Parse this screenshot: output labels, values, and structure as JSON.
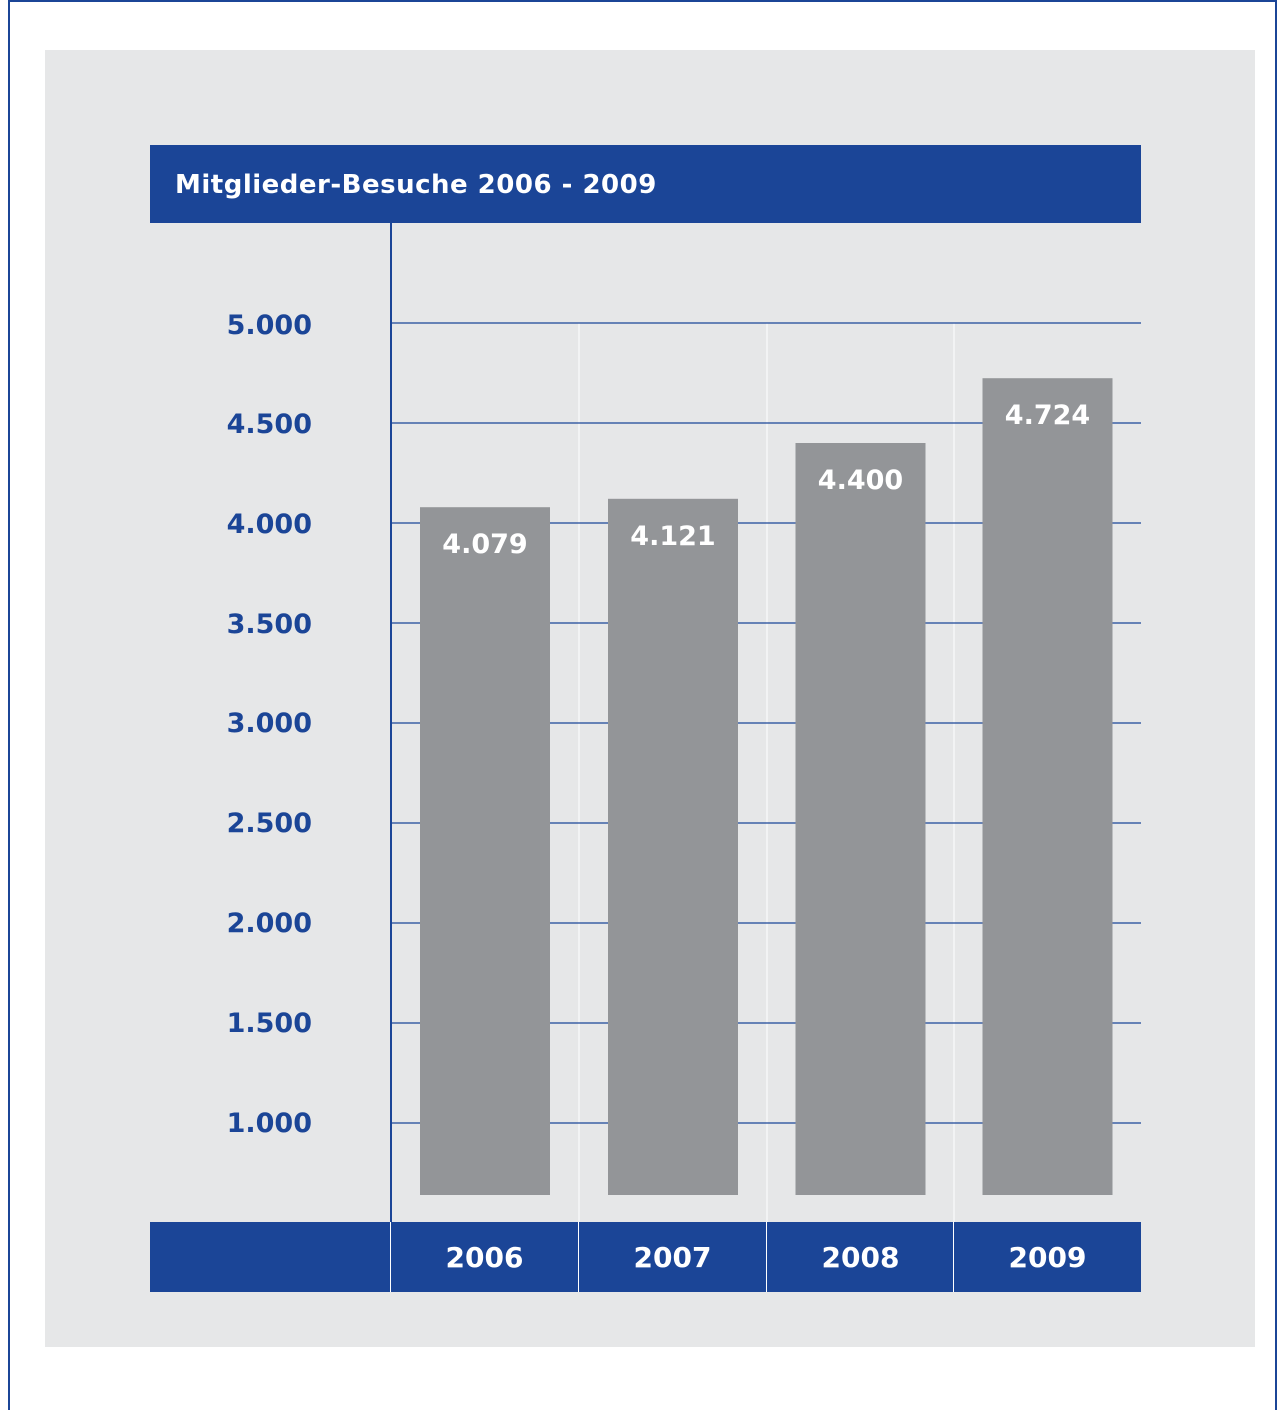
{
  "chart_data": {
    "type": "bar",
    "title": "Mitglieder-Besuche 2006 - 2009",
    "categories": [
      "2006",
      "2007",
      "2008",
      "2009"
    ],
    "values": [
      4079,
      4121,
      4400,
      4724
    ],
    "value_labels": [
      "4.079",
      "4.121",
      "4.400",
      "4.724"
    ],
    "y_ticks": [
      5000,
      4500,
      4000,
      3500,
      3000,
      2500,
      2000,
      1500,
      1000
    ],
    "y_tick_labels": [
      "5.000",
      "4.500",
      "4.000",
      "3.500",
      "3.000",
      "2.500",
      "2.000",
      "1.500",
      "1.000"
    ],
    "ylim": [
      700,
      5000
    ],
    "xlabel": "",
    "ylabel": "",
    "grid": true,
    "colors": {
      "accent": "#1b4597",
      "bar": "#939598",
      "background": "#e6e7e8"
    }
  }
}
